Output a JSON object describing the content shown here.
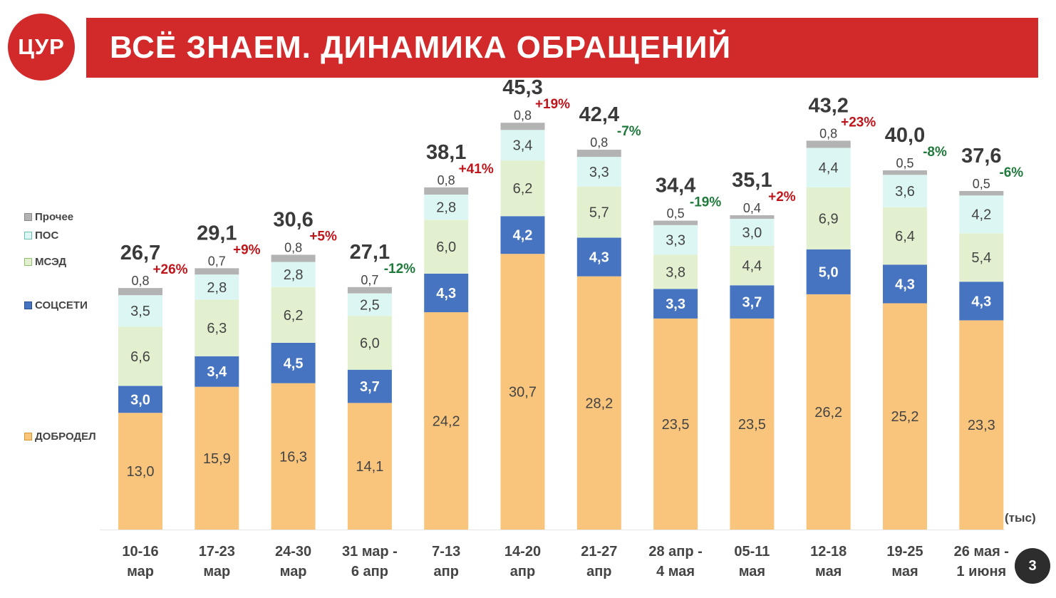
{
  "header": {
    "logo_text": "ЦУР",
    "title": "ВСЁ ЗНАЕМ. ДИНАМИКА ОБРАЩЕНИЙ"
  },
  "unit_label": "(тыс)",
  "page_number": "3",
  "chart_data": {
    "type": "bar",
    "stacked": true,
    "ylim": [
      0,
      50
    ],
    "grid": false,
    "legend_position": "left",
    "categories": [
      [
        "10-16",
        "мар"
      ],
      [
        "17-23",
        "мар"
      ],
      [
        "24-30",
        "мар"
      ],
      [
        "31 мар -",
        "6 апр"
      ],
      [
        "7-13",
        "апр"
      ],
      [
        "14-20",
        "апр"
      ],
      [
        "21-27",
        "апр"
      ],
      [
        "28 апр -",
        "4 мая"
      ],
      [
        "05-11",
        "мая"
      ],
      [
        "12-18",
        "мая"
      ],
      [
        "19-25",
        "мая"
      ],
      [
        "26 мая -",
        "1 июня"
      ]
    ],
    "series": [
      {
        "name": "ДОБРОДЕЛ",
        "color": "#f9c47c",
        "values": [
          13.0,
          15.9,
          16.3,
          14.1,
          24.2,
          30.7,
          28.2,
          23.5,
          23.5,
          26.2,
          25.2,
          23.3
        ],
        "labels": [
          "13,0",
          "15,9",
          "16,3",
          "14,1",
          "24,2",
          "30,7",
          "28,2",
          "23,5",
          "23,5",
          "26,2",
          "25,2",
          "23,3"
        ]
      },
      {
        "name": "СОЦСЕТИ",
        "color": "#4674c1",
        "values": [
          3.0,
          3.4,
          4.5,
          3.7,
          4.3,
          4.2,
          4.3,
          3.3,
          3.7,
          5.0,
          4.3,
          4.3
        ],
        "labels": [
          "3,0",
          "3,4",
          "4,5",
          "3,7",
          "4,3",
          "4,2",
          "4,3",
          "3,3",
          "3,7",
          "5,0",
          "4,3",
          "4,3"
        ]
      },
      {
        "name": "МСЭД",
        "color": "#e2f0d0",
        "values": [
          6.6,
          6.3,
          6.2,
          6.0,
          6.0,
          6.2,
          5.7,
          3.8,
          4.4,
          6.9,
          6.4,
          5.4
        ],
        "labels": [
          "6,6",
          "6,3",
          "6,2",
          "6,0",
          "6,0",
          "6,2",
          "5,7",
          "3,8",
          "4,4",
          "6,9",
          "6,4",
          "5,4"
        ]
      },
      {
        "name": "ПОС",
        "color": "#dcf7f3",
        "values": [
          3.5,
          2.8,
          2.8,
          2.5,
          2.8,
          3.4,
          3.3,
          3.3,
          3.0,
          4.4,
          3.6,
          4.2
        ],
        "labels": [
          "3,5",
          "2,8",
          "2,8",
          "2,5",
          "2,8",
          "3,4",
          "3,3",
          "3,3",
          "3,0",
          "4,4",
          "3,6",
          "4,2"
        ]
      },
      {
        "name": "Прочее",
        "color": "#b3b3b3",
        "values": [
          0.8,
          0.7,
          0.8,
          0.7,
          0.8,
          0.8,
          0.8,
          0.5,
          0.4,
          0.8,
          0.5,
          0.5
        ],
        "labels": [
          "0,8",
          "0,7",
          "0,8",
          "0,7",
          "0,8",
          "0,8",
          "0,8",
          "0,5",
          "0,4",
          "0,8",
          "0,5",
          "0,5"
        ]
      }
    ],
    "totals": [
      26.7,
      29.1,
      30.6,
      27.1,
      38.1,
      45.3,
      42.4,
      34.4,
      35.1,
      43.2,
      40.0,
      37.6
    ],
    "total_labels": [
      "26,7",
      "29,1",
      "30,6",
      "27,1",
      "38,1",
      "45,3",
      "42,4",
      "34,4",
      "35,1",
      "43,2",
      "40,0",
      "37,6"
    ],
    "changes": [
      "+26%",
      "+9%",
      "+5%",
      "-12%",
      "+41%",
      "+19%",
      "-7%",
      "-19%",
      "+2%",
      "+23%",
      "-8%",
      "-6%"
    ],
    "change_colors": {
      "positive": "#c0141b",
      "negative": "#1f7a3c"
    }
  }
}
